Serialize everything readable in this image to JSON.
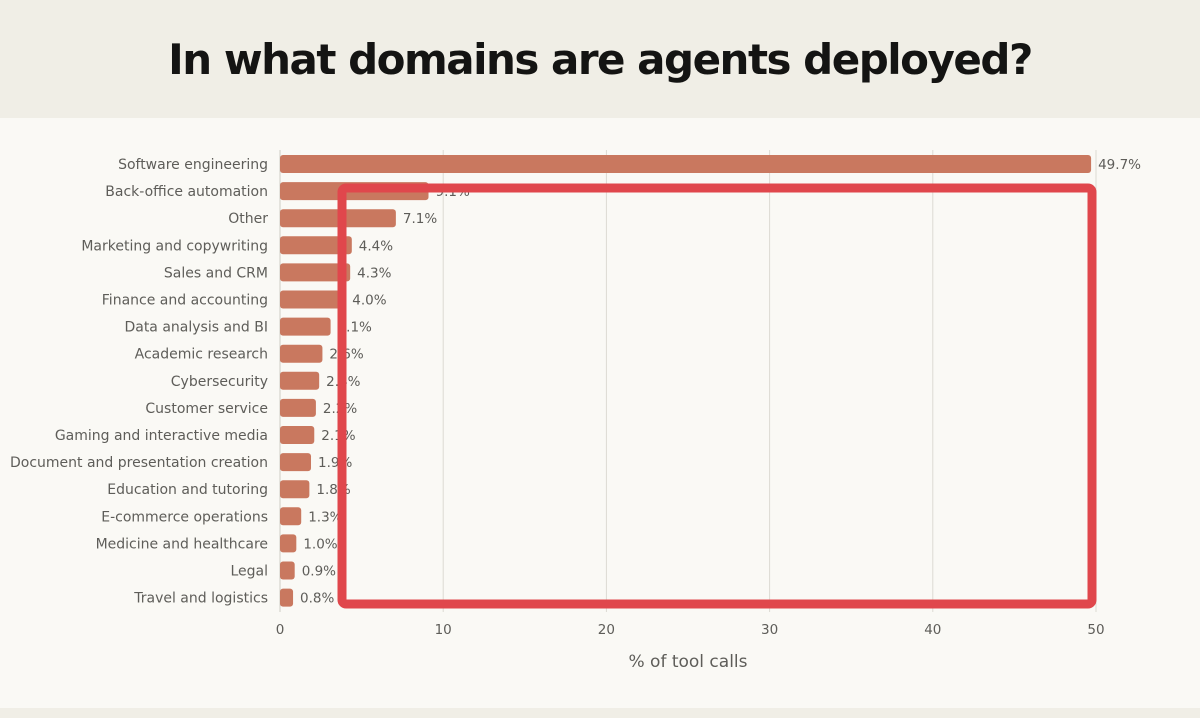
{
  "chart_data": {
    "type": "bar",
    "orientation": "horizontal",
    "title": "In what domains are agents deployed?",
    "xlabel": "% of tool calls",
    "ylabel": "",
    "xlim": [
      0,
      50
    ],
    "xticks": [
      0,
      10,
      20,
      30,
      40,
      50
    ],
    "grid": true,
    "bar_color": "#c9785f",
    "categories": [
      "Software engineering",
      "Back-office automation",
      "Other",
      "Marketing and copywriting",
      "Sales and CRM",
      "Finance and accounting",
      "Data analysis and BI",
      "Academic research",
      "Cybersecurity",
      "Customer service",
      "Gaming and interactive media",
      "Document and presentation creation",
      "Education and tutoring",
      "E-commerce operations",
      "Medicine and healthcare",
      "Legal",
      "Travel and logistics"
    ],
    "values": [
      49.7,
      9.1,
      7.1,
      4.4,
      4.3,
      4.0,
      3.1,
      2.6,
      2.4,
      2.2,
      2.1,
      1.9,
      1.8,
      1.3,
      1.0,
      0.9,
      0.8
    ],
    "annotation": {
      "type": "highlight-rectangle",
      "color": "#e0474c"
    }
  }
}
